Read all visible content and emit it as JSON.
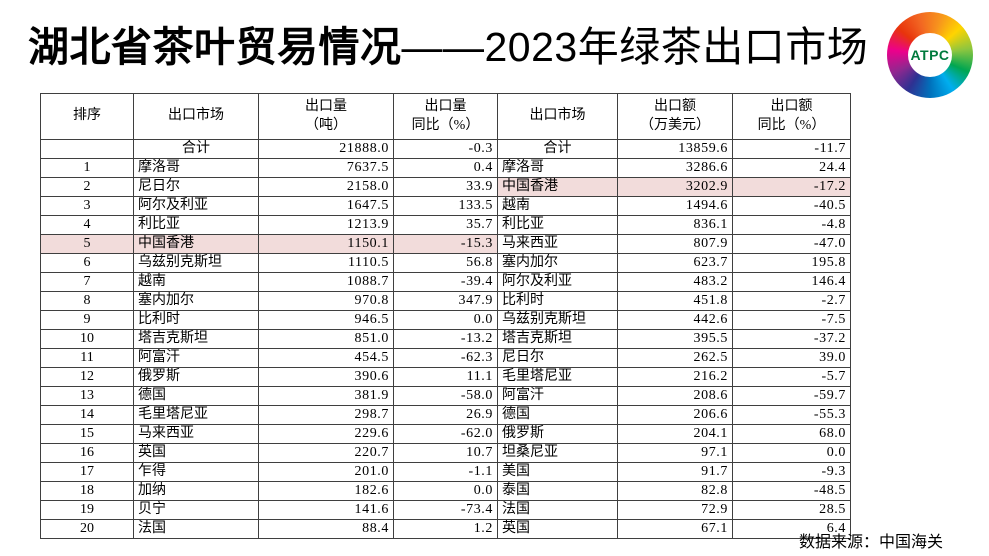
{
  "page": {
    "title_main": "湖北省茶叶贸易情况",
    "title_sub": "——2023年绿茶出口市场",
    "source_note": "数据来源：中国海关"
  },
  "logo": {
    "label": "ATPC"
  },
  "colors": {
    "highlight": "#f2dcdb",
    "border": "#3f3f3f",
    "logo_text": "#007a3d"
  },
  "chart_data": {
    "type": "table",
    "title": "湖北省茶叶贸易情况——2023年绿茶出口市场",
    "columns": [
      {
        "lines": [
          "排序"
        ]
      },
      {
        "lines": [
          "出口市场"
        ]
      },
      {
        "lines": [
          "出口量",
          "（吨）"
        ]
      },
      {
        "lines": [
          "出口量",
          "同比（%）"
        ]
      },
      {
        "lines": [
          "出口市场"
        ]
      },
      {
        "lines": [
          "出口额",
          "（万美元）"
        ]
      },
      {
        "lines": [
          "出口额",
          "同比（%）"
        ]
      }
    ],
    "rows": [
      {
        "cells": [
          "",
          "合计",
          "21888.0",
          "-0.3",
          "合计",
          "13859.6",
          "-11.7"
        ],
        "is_total": true,
        "hl_left": false,
        "hl_right": false
      },
      {
        "cells": [
          "1",
          "摩洛哥",
          "7637.5",
          "0.4",
          "摩洛哥",
          "3286.6",
          "24.4"
        ],
        "is_total": false,
        "hl_left": false,
        "hl_right": false
      },
      {
        "cells": [
          "2",
          "尼日尔",
          "2158.0",
          "33.9",
          "中国香港",
          "3202.9",
          "-17.2"
        ],
        "is_total": false,
        "hl_left": false,
        "hl_right": true
      },
      {
        "cells": [
          "3",
          "阿尔及利亚",
          "1647.5",
          "133.5",
          "越南",
          "1494.6",
          "-40.5"
        ],
        "is_total": false,
        "hl_left": false,
        "hl_right": false
      },
      {
        "cells": [
          "4",
          "利比亚",
          "1213.9",
          "35.7",
          "利比亚",
          "836.1",
          "-4.8"
        ],
        "is_total": false,
        "hl_left": false,
        "hl_right": false
      },
      {
        "cells": [
          "5",
          "中国香港",
          "1150.1",
          "-15.3",
          "马来西亚",
          "807.9",
          "-47.0"
        ],
        "is_total": false,
        "hl_left": true,
        "hl_right": false
      },
      {
        "cells": [
          "6",
          "乌兹别克斯坦",
          "1110.5",
          "56.8",
          "塞内加尔",
          "623.7",
          "195.8"
        ],
        "is_total": false,
        "hl_left": false,
        "hl_right": false
      },
      {
        "cells": [
          "7",
          "越南",
          "1088.7",
          "-39.4",
          "阿尔及利亚",
          "483.2",
          "146.4"
        ],
        "is_total": false,
        "hl_left": false,
        "hl_right": false
      },
      {
        "cells": [
          "8",
          "塞内加尔",
          "970.8",
          "347.9",
          "比利时",
          "451.8",
          "-2.7"
        ],
        "is_total": false,
        "hl_left": false,
        "hl_right": false
      },
      {
        "cells": [
          "9",
          "比利时",
          "946.5",
          "0.0",
          "乌兹别克斯坦",
          "442.6",
          "-7.5"
        ],
        "is_total": false,
        "hl_left": false,
        "hl_right": false
      },
      {
        "cells": [
          "10",
          "塔吉克斯坦",
          "851.0",
          "-13.2",
          "塔吉克斯坦",
          "395.5",
          "-37.2"
        ],
        "is_total": false,
        "hl_left": false,
        "hl_right": false
      },
      {
        "cells": [
          "11",
          "阿富汗",
          "454.5",
          "-62.3",
          "尼日尔",
          "262.5",
          "39.0"
        ],
        "is_total": false,
        "hl_left": false,
        "hl_right": false
      },
      {
        "cells": [
          "12",
          "俄罗斯",
          "390.6",
          "11.1",
          "毛里塔尼亚",
          "216.2",
          "-5.7"
        ],
        "is_total": false,
        "hl_left": false,
        "hl_right": false
      },
      {
        "cells": [
          "13",
          "德国",
          "381.9",
          "-58.0",
          "阿富汗",
          "208.6",
          "-59.7"
        ],
        "is_total": false,
        "hl_left": false,
        "hl_right": false
      },
      {
        "cells": [
          "14",
          "毛里塔尼亚",
          "298.7",
          "26.9",
          "德国",
          "206.6",
          "-55.3"
        ],
        "is_total": false,
        "hl_left": false,
        "hl_right": false
      },
      {
        "cells": [
          "15",
          "马来西亚",
          "229.6",
          "-62.0",
          "俄罗斯",
          "204.1",
          "68.0"
        ],
        "is_total": false,
        "hl_left": false,
        "hl_right": false
      },
      {
        "cells": [
          "16",
          "英国",
          "220.7",
          "10.7",
          "坦桑尼亚",
          "97.1",
          "0.0"
        ],
        "is_total": false,
        "hl_left": false,
        "hl_right": false
      },
      {
        "cells": [
          "17",
          "乍得",
          "201.0",
          "-1.1",
          "美国",
          "91.7",
          "-9.3"
        ],
        "is_total": false,
        "hl_left": false,
        "hl_right": false
      },
      {
        "cells": [
          "18",
          "加纳",
          "182.6",
          "0.0",
          "泰国",
          "82.8",
          "-48.5"
        ],
        "is_total": false,
        "hl_left": false,
        "hl_right": false
      },
      {
        "cells": [
          "19",
          "贝宁",
          "141.6",
          "-73.4",
          "法国",
          "72.9",
          "28.5"
        ],
        "is_total": false,
        "hl_left": false,
        "hl_right": false
      },
      {
        "cells": [
          "20",
          "法国",
          "88.4",
          "1.2",
          "英国",
          "67.1",
          "6.4"
        ],
        "is_total": false,
        "hl_left": false,
        "hl_right": false
      }
    ]
  }
}
